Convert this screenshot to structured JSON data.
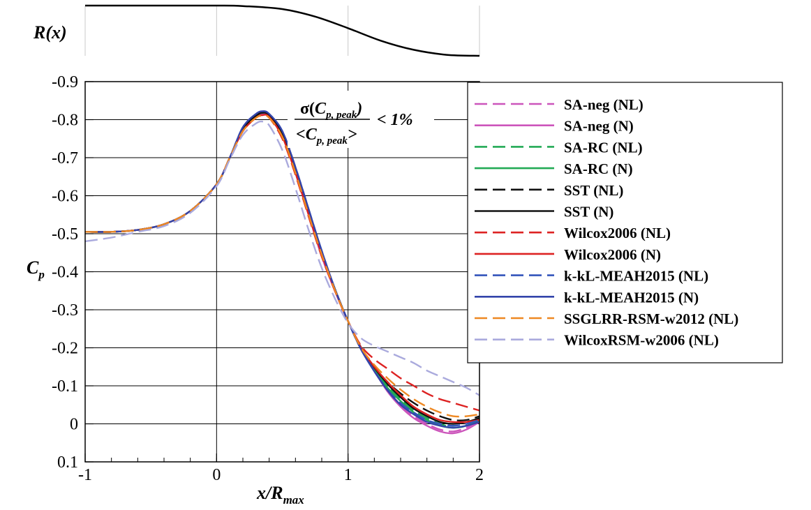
{
  "chart_data": [
    {
      "type": "line",
      "ylabel": "R(x)",
      "xlim": [
        -1,
        2
      ],
      "ylim": [
        0,
        1
      ],
      "grid": true,
      "series": [
        {
          "x": [
            -1,
            -0.5,
            0,
            0.2,
            0.5,
            0.75,
            1.0,
            1.25,
            1.5,
            1.75,
            2.0
          ],
          "y": [
            1,
            1,
            1,
            0.99,
            0.93,
            0.78,
            0.55,
            0.3,
            0.12,
            0.02,
            0
          ]
        }
      ]
    },
    {
      "type": "line",
      "xlabel": "x/R",
      "xlabel_sub": "max",
      "ylabel": "C",
      "ylabel_sub": "p",
      "xlim": [
        -1,
        2
      ],
      "ylim": [
        0.1,
        -0.9
      ],
      "y_inverted": true,
      "grid": true,
      "legend_position": "right",
      "xticks": [
        "-1",
        "0",
        "1",
        "2"
      ],
      "yticks": [
        "-0.9",
        "-0.8",
        "-0.7",
        "-0.6",
        "-0.5",
        "-0.4",
        "-0.3",
        "-0.2",
        "-0.1",
        "0",
        "0.1"
      ],
      "annotation": {
        "numerator_prefix": "σ(",
        "numerator_var": "C",
        "numerator_sub": "p, peak",
        "numerator_suffix": ")",
        "denominator_prefix": "<",
        "denominator_var": "C",
        "denominator_sub": "p, peak",
        "denominator_suffix": ">",
        "relation": "< 1%"
      },
      "x": [
        -1,
        -0.8,
        -0.6,
        -0.4,
        -0.2,
        0,
        0.1,
        0.2,
        0.3,
        0.35,
        0.4,
        0.5,
        0.6,
        0.7,
        0.8,
        0.9,
        1.0,
        1.1,
        1.2,
        1.3,
        1.4,
        1.5,
        1.6,
        1.7,
        1.8,
        1.9,
        2.0
      ],
      "series": [
        {
          "name": "SA-neg (NL)",
          "color": "#cc55bb",
          "dash": true,
          "y": [
            -0.505,
            -0.505,
            -0.51,
            -0.525,
            -0.56,
            -0.63,
            -0.7,
            -0.77,
            -0.81,
            -0.815,
            -0.81,
            -0.76,
            -0.66,
            -0.55,
            -0.44,
            -0.35,
            -0.27,
            -0.2,
            -0.14,
            -0.09,
            -0.05,
            -0.02,
            0.0,
            0.015,
            0.02,
            0.01,
            -0.01
          ]
        },
        {
          "name": "SA-neg (N)",
          "color": "#cc55bb",
          "dash": false,
          "y": [
            -0.505,
            -0.505,
            -0.51,
            -0.525,
            -0.56,
            -0.63,
            -0.7,
            -0.775,
            -0.81,
            -0.815,
            -0.81,
            -0.76,
            -0.66,
            -0.55,
            -0.44,
            -0.35,
            -0.27,
            -0.2,
            -0.14,
            -0.085,
            -0.045,
            -0.015,
            0.005,
            0.02,
            0.025,
            0.015,
            -0.005
          ]
        },
        {
          "name": "SA-RC (NL)",
          "color": "#22aa55",
          "dash": true,
          "y": [
            -0.505,
            -0.505,
            -0.51,
            -0.525,
            -0.56,
            -0.63,
            -0.7,
            -0.775,
            -0.81,
            -0.818,
            -0.812,
            -0.765,
            -0.67,
            -0.56,
            -0.45,
            -0.355,
            -0.27,
            -0.2,
            -0.145,
            -0.1,
            -0.065,
            -0.035,
            -0.015,
            0.0,
            0.01,
            0.005,
            -0.01
          ]
        },
        {
          "name": "SA-RC (N)",
          "color": "#22aa55",
          "dash": false,
          "y": [
            -0.505,
            -0.505,
            -0.51,
            -0.525,
            -0.56,
            -0.63,
            -0.7,
            -0.775,
            -0.81,
            -0.818,
            -0.812,
            -0.765,
            -0.67,
            -0.56,
            -0.45,
            -0.355,
            -0.27,
            -0.2,
            -0.145,
            -0.095,
            -0.06,
            -0.03,
            -0.01,
            0.005,
            0.01,
            0.005,
            -0.01
          ]
        },
        {
          "name": "SST (NL)",
          "color": "#111111",
          "dash": true,
          "y": [
            -0.505,
            -0.505,
            -0.51,
            -0.525,
            -0.56,
            -0.63,
            -0.7,
            -0.775,
            -0.81,
            -0.818,
            -0.812,
            -0.765,
            -0.67,
            -0.56,
            -0.45,
            -0.355,
            -0.27,
            -0.2,
            -0.15,
            -0.11,
            -0.08,
            -0.055,
            -0.035,
            -0.02,
            -0.01,
            -0.01,
            -0.02
          ]
        },
        {
          "name": "SST (N)",
          "color": "#111111",
          "dash": false,
          "y": [
            -0.505,
            -0.505,
            -0.51,
            -0.525,
            -0.56,
            -0.63,
            -0.7,
            -0.775,
            -0.81,
            -0.818,
            -0.812,
            -0.765,
            -0.67,
            -0.56,
            -0.45,
            -0.355,
            -0.27,
            -0.2,
            -0.148,
            -0.105,
            -0.07,
            -0.04,
            -0.02,
            -0.005,
            0.0,
            -0.005,
            -0.015
          ]
        },
        {
          "name": "Wilcox2006 (NL)",
          "color": "#dd2222",
          "dash": true,
          "y": [
            -0.505,
            -0.505,
            -0.51,
            -0.525,
            -0.56,
            -0.63,
            -0.7,
            -0.77,
            -0.805,
            -0.81,
            -0.805,
            -0.75,
            -0.655,
            -0.545,
            -0.44,
            -0.35,
            -0.27,
            -0.205,
            -0.17,
            -0.145,
            -0.12,
            -0.1,
            -0.08,
            -0.065,
            -0.055,
            -0.045,
            -0.035
          ]
        },
        {
          "name": "Wilcox2006 (N)",
          "color": "#dd2222",
          "dash": false,
          "y": [
            -0.505,
            -0.505,
            -0.51,
            -0.525,
            -0.56,
            -0.63,
            -0.7,
            -0.77,
            -0.805,
            -0.812,
            -0.807,
            -0.755,
            -0.66,
            -0.55,
            -0.445,
            -0.352,
            -0.27,
            -0.2,
            -0.15,
            -0.11,
            -0.075,
            -0.045,
            -0.025,
            -0.01,
            -0.005,
            -0.005,
            -0.01
          ]
        },
        {
          "name": "k-kL-MEAH2015 (NL)",
          "color": "#3355bb",
          "dash": true,
          "y": [
            -0.505,
            -0.505,
            -0.51,
            -0.525,
            -0.56,
            -0.63,
            -0.7,
            -0.78,
            -0.815,
            -0.822,
            -0.815,
            -0.77,
            -0.675,
            -0.565,
            -0.455,
            -0.355,
            -0.27,
            -0.195,
            -0.14,
            -0.09,
            -0.055,
            -0.03,
            -0.01,
            0.0,
            0.005,
            0.0,
            -0.01
          ]
        },
        {
          "name": "k-kL-MEAH2015 (N)",
          "color": "#3344aa",
          "dash": false,
          "y": [
            -0.505,
            -0.505,
            -0.51,
            -0.525,
            -0.56,
            -0.63,
            -0.7,
            -0.78,
            -0.815,
            -0.822,
            -0.815,
            -0.77,
            -0.675,
            -0.565,
            -0.455,
            -0.355,
            -0.27,
            -0.195,
            -0.138,
            -0.088,
            -0.05,
            -0.025,
            -0.005,
            0.005,
            0.01,
            0.005,
            -0.005
          ]
        },
        {
          "name": "SSGLRR-RSM-w2012 (NL)",
          "color": "#ee8822",
          "dash": true,
          "y": [
            -0.505,
            -0.505,
            -0.51,
            -0.525,
            -0.56,
            -0.63,
            -0.7,
            -0.77,
            -0.805,
            -0.81,
            -0.805,
            -0.755,
            -0.66,
            -0.55,
            -0.445,
            -0.352,
            -0.27,
            -0.2,
            -0.155,
            -0.12,
            -0.09,
            -0.065,
            -0.045,
            -0.03,
            -0.02,
            -0.02,
            -0.025
          ]
        },
        {
          "name": "WilcoxRSM-w2006 (NL)",
          "color": "#aaaadd",
          "dash": true,
          "y": [
            -0.48,
            -0.49,
            -0.505,
            -0.52,
            -0.555,
            -0.625,
            -0.695,
            -0.76,
            -0.79,
            -0.795,
            -0.785,
            -0.72,
            -0.62,
            -0.51,
            -0.41,
            -0.33,
            -0.265,
            -0.225,
            -0.205,
            -0.19,
            -0.175,
            -0.16,
            -0.14,
            -0.125,
            -0.11,
            -0.095,
            -0.075
          ]
        }
      ]
    }
  ]
}
